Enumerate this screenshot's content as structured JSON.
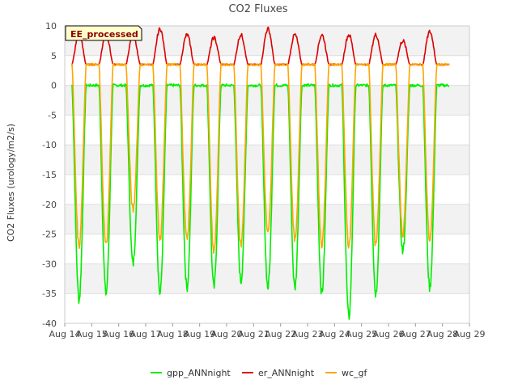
{
  "chart_data": {
    "type": "line",
    "title": "CO2 Fluxes",
    "xlabel": "",
    "ylabel": "CO2 Fluxes (urology/m2/s)",
    "badge": "EE_processed",
    "ylim": [
      -40,
      10
    ],
    "yticks": [
      10,
      5,
      0,
      -5,
      -10,
      -15,
      -20,
      -25,
      -30,
      -35,
      -40
    ],
    "xlim": [
      "2023-08-14",
      "2023-08-29"
    ],
    "xticks": [
      "Aug 14",
      "Aug 15",
      "Aug 16",
      "Aug 17",
      "Aug 18",
      "Aug 19",
      "Aug 20",
      "Aug 21",
      "Aug 22",
      "Aug 23",
      "Aug 24",
      "Aug 25",
      "Aug 26",
      "Aug 27",
      "Aug 28",
      "Aug 29"
    ],
    "grid": true,
    "legend_position": "bottom",
    "series": [
      {
        "name": "gpp_ANNnight",
        "color": "#00ee00",
        "start": "2023-08-14 06:00",
        "end": "2023-08-28 06:00",
        "night_level": 0,
        "daily_min": [
          -36,
          -35,
          -30,
          -35,
          -34,
          -34,
          -33,
          -34,
          -34,
          -35,
          -39,
          -35,
          -28,
          -34
        ]
      },
      {
        "name": "er_ANNnight",
        "color": "#dd0000",
        "start": "2023-08-14 06:00",
        "end": "2023-08-28 06:00",
        "night_level": 3.5,
        "daily_max": [
          8.5,
          8.5,
          8.5,
          9.5,
          8.5,
          8.0,
          8.5,
          9.5,
          8.5,
          8.5,
          8.5,
          8.5,
          7.5,
          9.0
        ]
      },
      {
        "name": "wc_gf",
        "color": "#ffa500",
        "start": "2023-08-14 06:00",
        "end": "2023-08-28 06:00",
        "night_level": 3.5,
        "daily_min": [
          -27,
          -27,
          -21,
          -26,
          -26,
          -28,
          -27,
          -25,
          -26,
          -27,
          -27,
          -27,
          -25,
          -26
        ]
      }
    ]
  }
}
